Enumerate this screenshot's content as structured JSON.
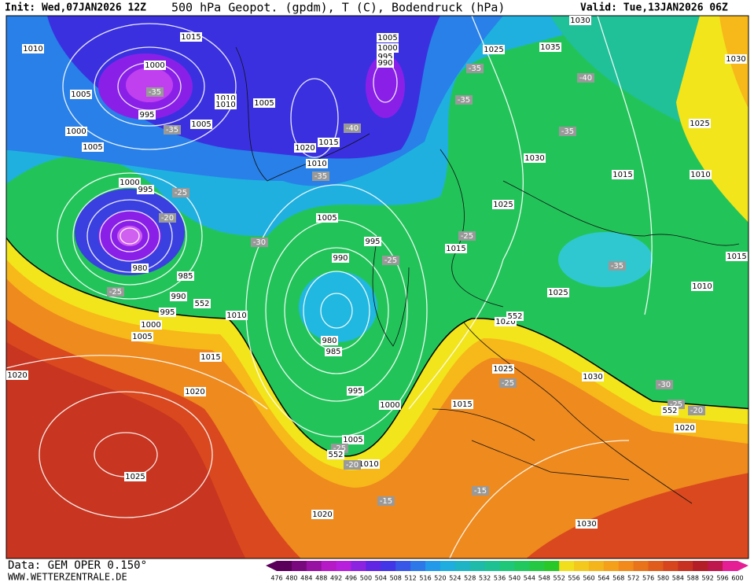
{
  "header": {
    "init": "Init: Wed,07JAN2026 12Z",
    "title": "500 hPa Geopot. (gpdm), T (C), Bodendruck (hPa)",
    "valid": "Valid: Tue,13JAN2026 06Z"
  },
  "footer": {
    "data": "Data: GEM OPER 0.150°",
    "site": "WWW.WETTERZENTRALE.DE"
  },
  "colorbar": {
    "labels": [
      476,
      480,
      484,
      488,
      492,
      496,
      500,
      504,
      508,
      512,
      516,
      520,
      524,
      528,
      532,
      536,
      540,
      544,
      548,
      552,
      556,
      560,
      564,
      568,
      572,
      576,
      580,
      584,
      588,
      592,
      596,
      600
    ]
  },
  "map": {
    "pressure_labels": [
      "1015",
      "1010",
      "1005",
      "1000",
      "995",
      "990",
      "1030",
      "1025",
      "1035",
      "1030",
      "1000",
      "1005",
      "1010",
      "1010",
      "1005",
      "995",
      "1005",
      "1000",
      "1005",
      "1020",
      "1015",
      "1010",
      "1030",
      "1025",
      "1015",
      "1010",
      "1000",
      "995",
      "1025",
      "1005",
      "995",
      "1015",
      "990",
      "1015",
      "980",
      "985",
      "990",
      "1025",
      "1010",
      "995",
      "1010",
      "1000",
      "1005",
      "1020",
      "980",
      "985",
      "1015",
      "1020",
      "1025",
      "1030",
      "1020",
      "995",
      "1000",
      "1015",
      "1020",
      "1005",
      "1010",
      "1025",
      "1020",
      "1030"
    ],
    "temperature_labels": [
      "-35",
      "-35",
      "-25",
      "-20",
      "-25",
      "-40",
      "-35",
      "-30",
      "-25",
      "-35",
      "-35",
      "-40",
      "-35",
      "-25",
      "-35",
      "-30",
      "-20",
      "-25",
      "-25",
      "-25",
      "-15",
      "-15",
      "-20"
    ],
    "geopotential_labels": [
      "552",
      "552",
      "552",
      "552"
    ]
  }
}
